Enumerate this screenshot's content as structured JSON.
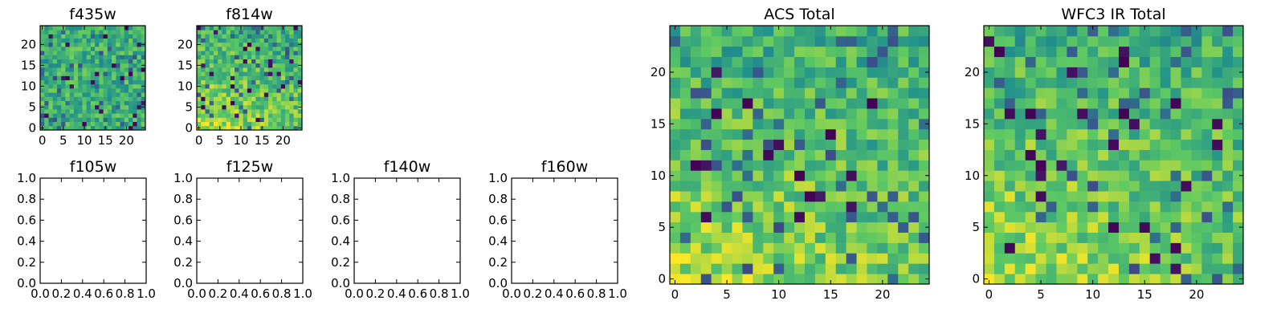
{
  "colors": {
    "colormap": [
      "#440154",
      "#3b528b",
      "#21918c",
      "#5ec962",
      "#fde725"
    ],
    "frame": "#000000",
    "background": "#ffffff"
  },
  "chart_data": [
    {
      "type": "heatmap",
      "title": "f435w",
      "xlabel": "",
      "ylabel": "",
      "xlim": [
        0,
        24
      ],
      "ylim": [
        0,
        24
      ],
      "xticks": [
        "0",
        "5",
        "10",
        "15",
        "20"
      ],
      "yticks": [
        "0",
        "5",
        "10",
        "15",
        "20"
      ],
      "grid": false,
      "shape": [
        25,
        25
      ],
      "value_range": [
        0,
        1
      ],
      "values_note": "25x25 pixel image, viridis colormap; pixel values not printed; mostly green/yellow with scattered dark pixels"
    },
    {
      "type": "heatmap",
      "title": "f814w",
      "xlabel": "",
      "ylabel": "",
      "xlim": [
        0,
        24
      ],
      "ylim": [
        0,
        24
      ],
      "xticks": [
        "0",
        "5",
        "10",
        "15",
        "20"
      ],
      "yticks": [
        "0",
        "5",
        "10",
        "15",
        "20"
      ],
      "grid": false,
      "shape": [
        25,
        25
      ],
      "value_range": [
        0,
        1
      ],
      "values_note": "25x25 pixel image, viridis colormap; brighter (yellow) toward the bottom rows"
    },
    {
      "type": "line",
      "title": "f105w",
      "xlim": [
        0,
        1
      ],
      "ylim": [
        0,
        1
      ],
      "xticks": [
        "0.0",
        "0.2",
        "0.4",
        "0.6",
        "0.8",
        "1.0"
      ],
      "yticks": [
        "0.0",
        "0.2",
        "0.4",
        "0.6",
        "0.8",
        "1.0"
      ],
      "series": []
    },
    {
      "type": "line",
      "title": "f125w",
      "xlim": [
        0,
        1
      ],
      "ylim": [
        0,
        1
      ],
      "xticks": [
        "0.0",
        "0.2",
        "0.4",
        "0.6",
        "0.8",
        "1.0"
      ],
      "yticks": [
        "0.0",
        "0.2",
        "0.4",
        "0.6",
        "0.8",
        "1.0"
      ],
      "series": []
    },
    {
      "type": "line",
      "title": "f140w",
      "xlim": [
        0,
        1
      ],
      "ylim": [
        0,
        1
      ],
      "xticks": [
        "0.0",
        "0.2",
        "0.4",
        "0.6",
        "0.8",
        "1.0"
      ],
      "yticks": [
        "0.0",
        "0.2",
        "0.4",
        "0.6",
        "0.8",
        "1.0"
      ],
      "series": []
    },
    {
      "type": "line",
      "title": "f160w",
      "xlim": [
        0,
        1
      ],
      "ylim": [
        0,
        1
      ],
      "xticks": [
        "0.0",
        "0.2",
        "0.4",
        "0.6",
        "0.8",
        "1.0"
      ],
      "yticks": [
        "0.0",
        "0.2",
        "0.4",
        "0.6",
        "0.8",
        "1.0"
      ],
      "series": []
    },
    {
      "type": "heatmap",
      "title": "ACS Total",
      "xlabel": "",
      "ylabel": "",
      "xlim": [
        0,
        24
      ],
      "ylim": [
        0,
        24
      ],
      "xticks": [
        "0",
        "5",
        "10",
        "15",
        "20"
      ],
      "yticks": [
        "0",
        "5",
        "10",
        "15",
        "20"
      ],
      "grid": false,
      "shape": [
        25,
        25
      ],
      "value_range": [
        0,
        1
      ],
      "values_note": "25x25 pixel image, viridis colormap; brighter toward lower-left, scattered dark purple pixels"
    },
    {
      "type": "heatmap",
      "title": "WFC3 IR Total",
      "xlabel": "",
      "ylabel": "",
      "xlim": [
        0,
        24
      ],
      "ylim": [
        0,
        24
      ],
      "xticks": [
        "0",
        "5",
        "10",
        "15",
        "20"
      ],
      "yticks": [
        "0",
        "5",
        "10",
        "15",
        "20"
      ],
      "grid": false,
      "shape": [
        25,
        25
      ],
      "value_range": [
        0,
        1
      ],
      "values_note": "25x25 pixel image, viridis colormap; brighter toward lower-left, scattered dark purple pixels"
    }
  ]
}
